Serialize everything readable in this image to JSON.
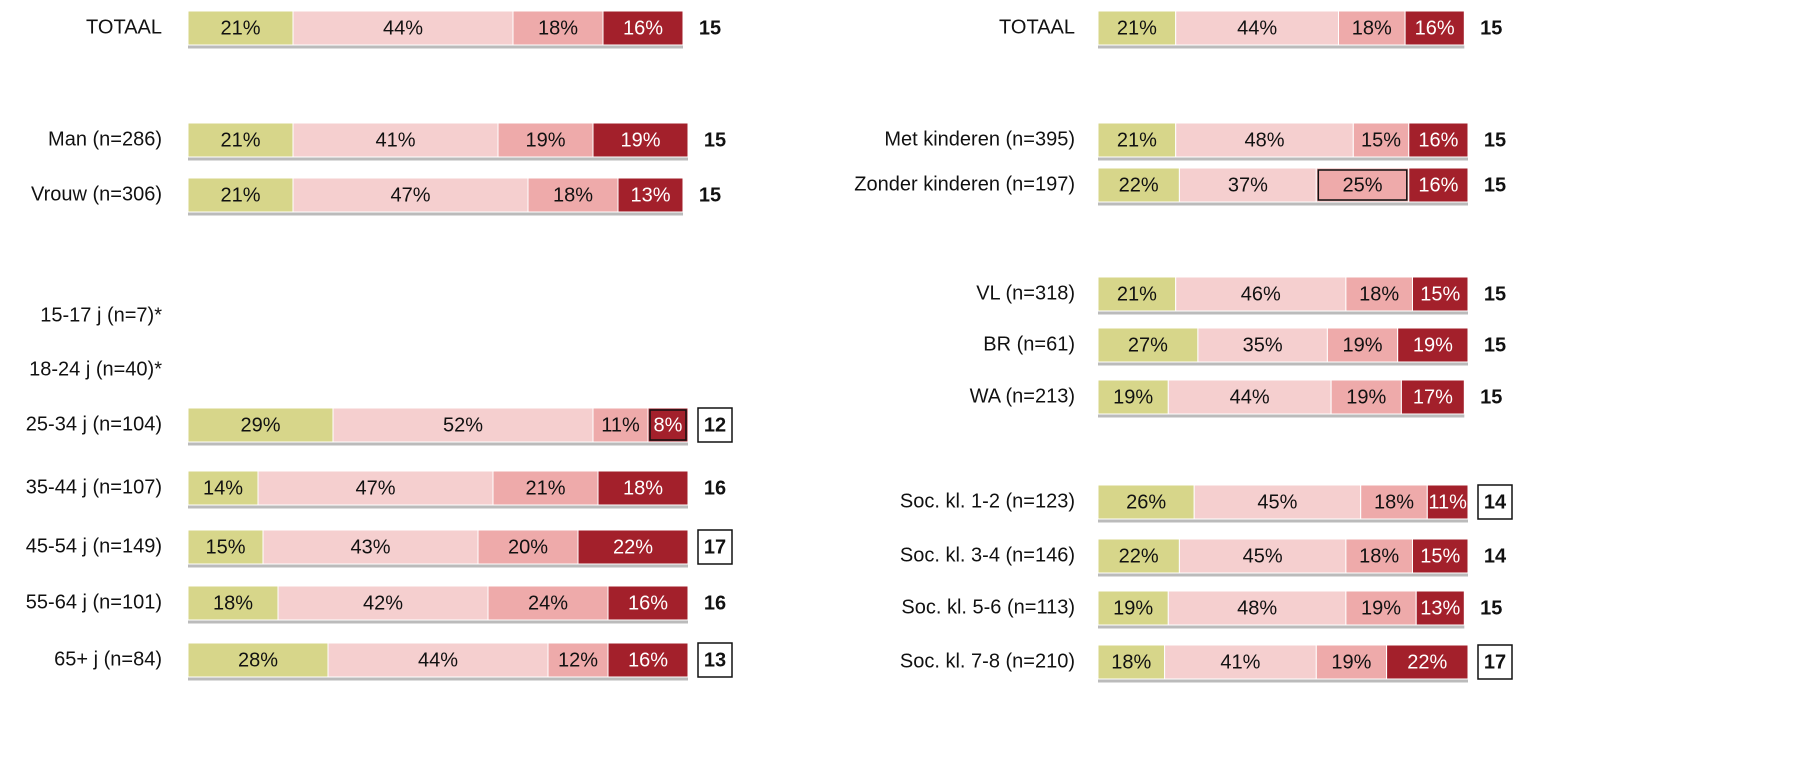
{
  "chart_data": [
    {
      "type": "bar",
      "orientation": "horizontal",
      "stacked": true,
      "xlim": [
        0,
        100
      ],
      "categories": [
        "TOTAAL",
        "Man (n=286)",
        "Vrouw (n=306)",
        "15-17 j (n=7)*",
        "18-24 j (n=40)*",
        "25-34 j (n=104)",
        "35-44 j (n=107)",
        "45-54 j (n=149)",
        "55-64 j (n=101)",
        "65+ j (n=84)"
      ],
      "series": [
        {
          "color": "#d7d68a",
          "values": [
            21,
            21,
            21,
            null,
            null,
            29,
            14,
            15,
            18,
            28
          ],
          "value_labels": [
            "21%",
            "21%",
            "21%",
            null,
            null,
            "29%",
            "14%",
            "15%",
            "18%",
            "28%"
          ]
        },
        {
          "color": "#f5cfcf",
          "values": [
            44,
            41,
            47,
            null,
            null,
            52,
            47,
            43,
            42,
            44
          ],
          "value_labels": [
            "44%",
            "41%",
            "47%",
            null,
            null,
            "52%",
            "47%",
            "43%",
            "42%",
            "44%"
          ]
        },
        {
          "color": "#eeaaaa",
          "values": [
            18,
            19,
            18,
            null,
            null,
            11,
            21,
            20,
            24,
            12
          ],
          "value_labels": [
            "18%",
            "19%",
            "18%",
            null,
            null,
            "11%",
            "21%",
            "20%",
            "24%",
            "12%"
          ]
        },
        {
          "color": "#a3202b",
          "values": [
            16,
            19,
            13,
            null,
            null,
            8,
            18,
            22,
            16,
            16
          ],
          "value_labels": [
            "16%",
            "19%",
            "13%",
            null,
            null,
            "8%",
            "18%",
            "22%",
            "16%",
            "16%"
          ],
          "boxed": [
            false,
            false,
            false,
            false,
            false,
            true,
            false,
            false,
            false,
            false
          ]
        }
      ],
      "scores": [
        15,
        15,
        15,
        null,
        null,
        12,
        16,
        17,
        16,
        13
      ],
      "scores_boxed": [
        false,
        false,
        false,
        false,
        false,
        true,
        false,
        true,
        false,
        true
      ]
    },
    {
      "type": "bar",
      "orientation": "horizontal",
      "stacked": true,
      "xlim": [
        0,
        100
      ],
      "categories": [
        "TOTAAL",
        "Met kinderen (n=395)",
        "Zonder kinderen (n=197)",
        "VL (n=318)",
        "BR (n=61)",
        "WA (n=213)",
        "Soc. kl. 1-2 (n=123)",
        "Soc. kl. 3-4 (n=146)",
        "Soc. kl. 5-6 (n=113)",
        "Soc. kl. 7-8 (n=210)"
      ],
      "series": [
        {
          "color": "#d7d68a",
          "values": [
            21,
            21,
            22,
            21,
            27,
            19,
            26,
            22,
            19,
            18
          ],
          "value_labels": [
            "21%",
            "21%",
            "22%",
            "21%",
            "27%",
            "19%",
            "26%",
            "22%",
            "19%",
            "18%"
          ]
        },
        {
          "color": "#f5cfcf",
          "values": [
            44,
            48,
            37,
            46,
            35,
            44,
            45,
            45,
            48,
            41
          ],
          "value_labels": [
            "44%",
            "48%",
            "37%",
            "46%",
            "35%",
            "44%",
            "45%",
            "45%",
            "48%",
            "41%"
          ]
        },
        {
          "color": "#eeaaaa",
          "values": [
            18,
            15,
            25,
            18,
            19,
            19,
            18,
            18,
            19,
            19
          ],
          "value_labels": [
            "18%",
            "15%",
            "25%",
            "18%",
            "19%",
            "19%",
            "18%",
            "18%",
            "19%",
            "19%"
          ],
          "boxed": [
            false,
            false,
            true,
            false,
            false,
            false,
            false,
            false,
            false,
            false
          ]
        },
        {
          "color": "#a3202b",
          "values": [
            16,
            16,
            16,
            15,
            19,
            17,
            11,
            15,
            13,
            22
          ],
          "value_labels": [
            "16%",
            "16%",
            "16%",
            "15%",
            "19%",
            "17%",
            "11%",
            "15%",
            "13%",
            "22%"
          ]
        }
      ],
      "scores": [
        15,
        15,
        15,
        15,
        15,
        15,
        14,
        14,
        15,
        17
      ],
      "scores_boxed": [
        false,
        false,
        false,
        false,
        false,
        false,
        true,
        false,
        false,
        true
      ]
    }
  ]
}
